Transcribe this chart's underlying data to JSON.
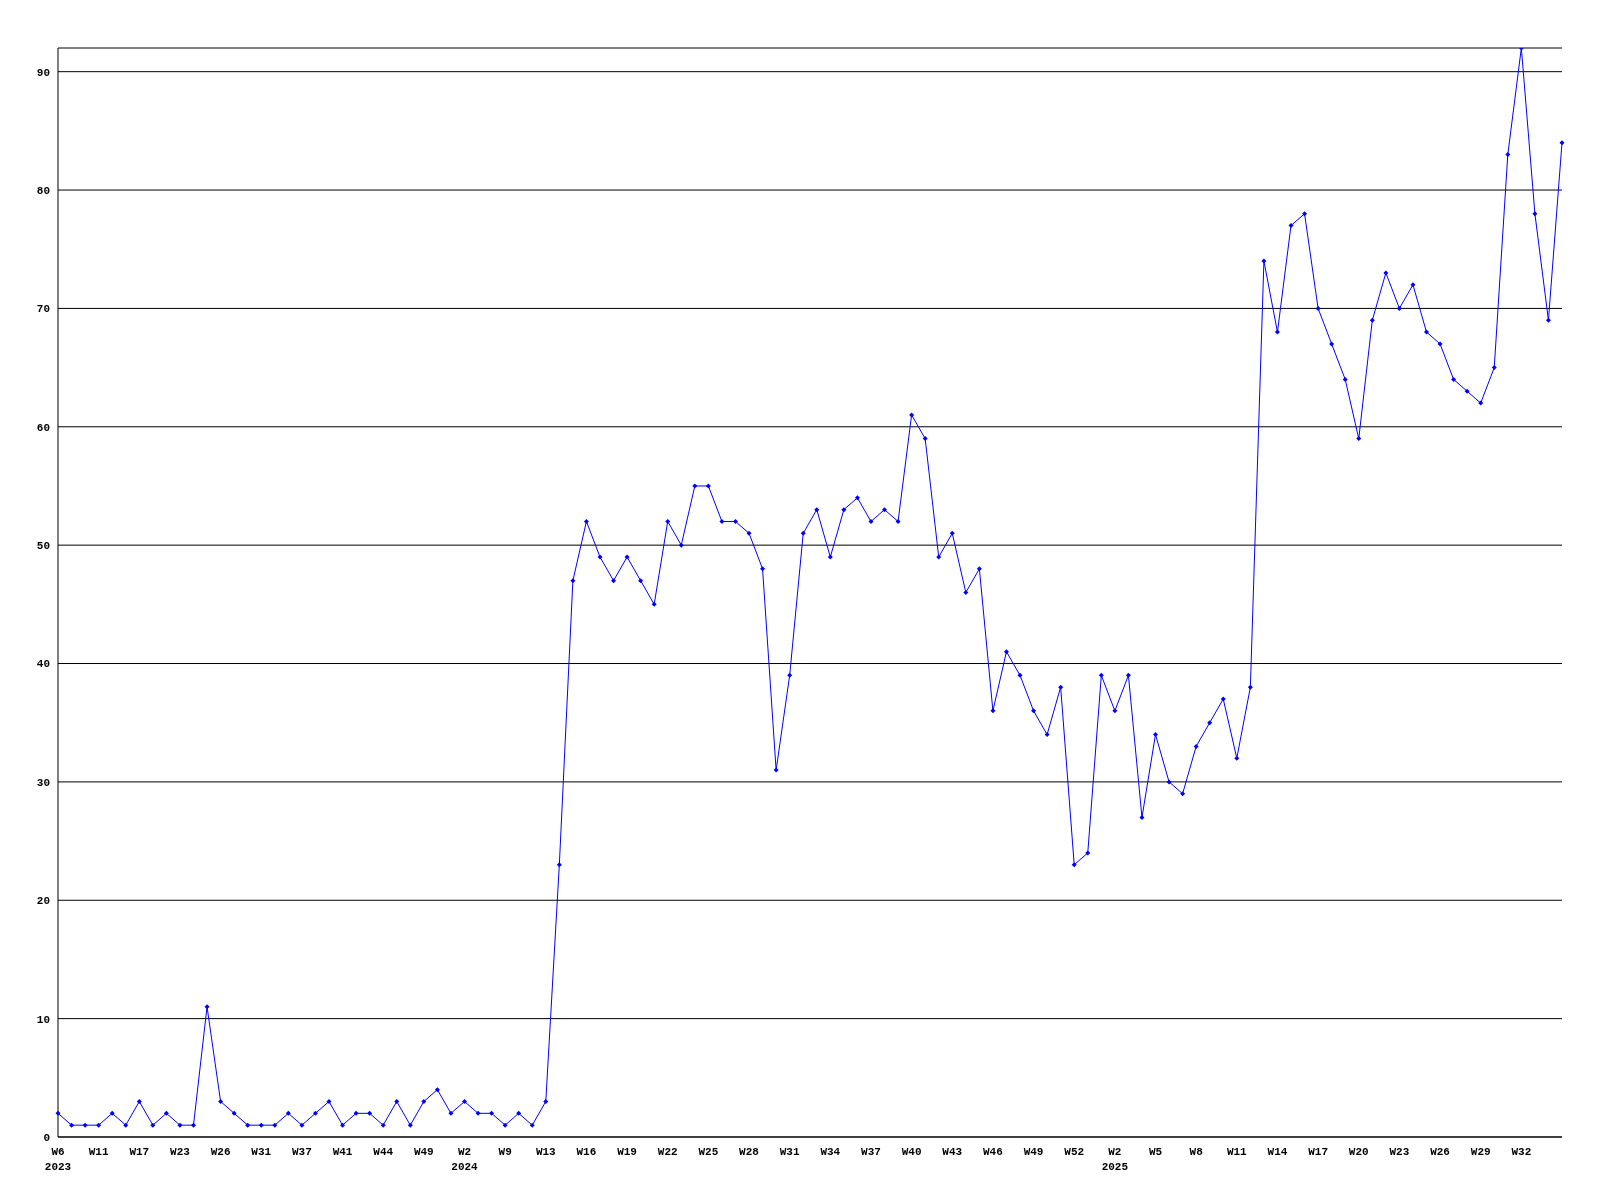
{
  "chart_data": {
    "type": "line",
    "categories": [
      "W6\n2023",
      null,
      null,
      "W11",
      null,
      null,
      "W17",
      null,
      null,
      "W23",
      null,
      null,
      "W26",
      null,
      null,
      "W31",
      null,
      null,
      "W37",
      null,
      null,
      "W41",
      null,
      null,
      "W44",
      null,
      null,
      "W49",
      null,
      null,
      "W2\n2024",
      null,
      null,
      "W9",
      null,
      null,
      "W13",
      null,
      null,
      "W16",
      null,
      null,
      "W19",
      null,
      null,
      "W22",
      null,
      null,
      "W25",
      null,
      null,
      "W28",
      null,
      null,
      "W31",
      null,
      null,
      "W34",
      null,
      null,
      "W37",
      null,
      null,
      "W40",
      null,
      null,
      "W43",
      null,
      null,
      "W46",
      null,
      null,
      "W49",
      null,
      null,
      "W52",
      null,
      null,
      "W2\n2025",
      null,
      null,
      "W5",
      null,
      null,
      "W8",
      null,
      null,
      "W11",
      null,
      null,
      "W14",
      null,
      null,
      "W17",
      null,
      null,
      "W20",
      null,
      null,
      "W23",
      null,
      null,
      "W26",
      null,
      null,
      "W29",
      null,
      null,
      "W32",
      null,
      null,
      null
    ],
    "series": [
      {
        "color": "#0000ff",
        "values": [
          2,
          1,
          1,
          1,
          2,
          1,
          3,
          1,
          2,
          1,
          1,
          11,
          3,
          2,
          1,
          1,
          1,
          2,
          1,
          2,
          3,
          1,
          2,
          2,
          1,
          3,
          1,
          3,
          4,
          2,
          3,
          2,
          2,
          1,
          2,
          1,
          3,
          23,
          47,
          52,
          49,
          47,
          49,
          47,
          45,
          52,
          50,
          55,
          55,
          52,
          52,
          51,
          48,
          31,
          39,
          51,
          53,
          49,
          53,
          54,
          52,
          53,
          52,
          61,
          59,
          49,
          51,
          46,
          48,
          36,
          41,
          39,
          36,
          34,
          38,
          23,
          24,
          39,
          36,
          39,
          27,
          34,
          30,
          29,
          33,
          35,
          37,
          32,
          38,
          74,
          68,
          77,
          78,
          70,
          67,
          64,
          59,
          69,
          73,
          70,
          72,
          68,
          67,
          64,
          63,
          62,
          65,
          83,
          92,
          78,
          69,
          84
        ]
      }
    ],
    "ylim": [
      0,
      92
    ],
    "yticks": [
      0,
      10,
      20,
      30,
      40,
      50,
      60,
      70,
      80,
      90
    ],
    "grid": "y",
    "marker": "diamond",
    "line_style": "solid"
  }
}
